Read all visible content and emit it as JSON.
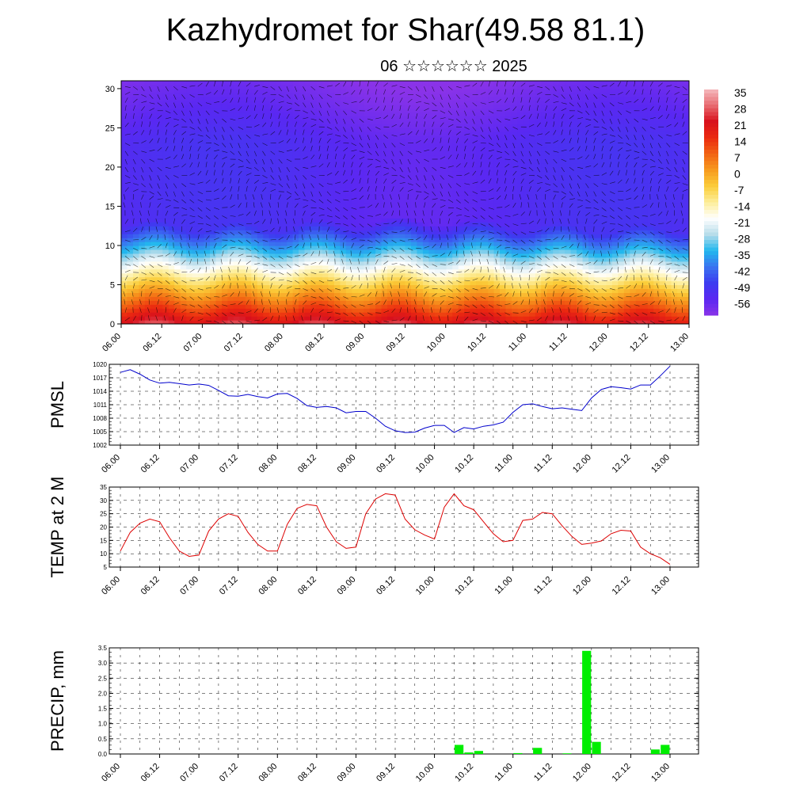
{
  "title": "Kazhydromet for Shar(49.58 81.1)",
  "subtitle": "06 ☆☆☆☆☆☆ 2025",
  "time_labels": [
    "06.00",
    "06.12",
    "07.00",
    "07.12",
    "08.00",
    "08.12",
    "09.00",
    "09.12",
    "10.00",
    "10.12",
    "11.00",
    "11.12",
    "12.00",
    "12.12",
    "13.00"
  ],
  "chart_data": [
    {
      "type": "heatmap",
      "panel": "cross-section",
      "x_categories": [
        "06.00",
        "06.12",
        "07.00",
        "07.12",
        "08.00",
        "08.12",
        "09.00",
        "09.12",
        "10.00",
        "10.12",
        "11.00",
        "11.12",
        "12.00",
        "12.12",
        "13.00"
      ],
      "ylim": [
        0,
        31
      ],
      "yticks": [
        0,
        5,
        10,
        15,
        20,
        25,
        30
      ],
      "colorbar": {
        "labels": [
          "35",
          "28",
          "21",
          "14",
          "7",
          "0",
          "-7",
          "-14",
          "-21",
          "-28",
          "-35",
          "-42",
          "-49",
          "-56"
        ],
        "range": [
          -63,
          42
        ],
        "colors": [
          "#8a33e8",
          "#5a28f2",
          "#3c3cf0",
          "#3a74f0",
          "#21b8ee",
          "#b7dcea",
          "#ffffff",
          "#fdee9a",
          "#fbcd3a",
          "#f79a1f",
          "#f26413",
          "#eb2a10",
          "#d8101c",
          "#e86a70",
          "#f5b9bd"
        ]
      },
      "wind_barbs": true
    },
    {
      "type": "line",
      "ylabel": "PMSL",
      "ylim": [
        1002,
        1020
      ],
      "yticks": [
        1002,
        1005,
        1008,
        1011,
        1014,
        1017,
        1020
      ],
      "x_step_hours": 3,
      "color": "#0000cc",
      "values": [
        1018.2,
        1018.8,
        1017.8,
        1016.5,
        1015.8,
        1016.0,
        1015.7,
        1015.4,
        1015.6,
        1015.3,
        1014.2,
        1013.0,
        1012.9,
        1013.3,
        1012.8,
        1012.5,
        1013.4,
        1013.5,
        1012.4,
        1010.8,
        1010.4,
        1010.6,
        1010.3,
        1009.2,
        1009.5,
        1009.5,
        1008.0,
        1006.2,
        1005.2,
        1004.8,
        1004.9,
        1005.8,
        1006.4,
        1006.4,
        1004.8,
        1005.9,
        1005.6,
        1006.2,
        1006.5,
        1007.1,
        1009.3,
        1011.0,
        1011.2,
        1010.6,
        1010.1,
        1010.3,
        1010.0,
        1009.7,
        1012.5,
        1014.4,
        1015.0,
        1014.8,
        1014.5,
        1015.4,
        1015.4,
        1017.4,
        1019.6
      ]
    },
    {
      "type": "line",
      "ylabel": "TEMP at 2 M",
      "ylim": [
        5,
        35
      ],
      "yticks": [
        5,
        10,
        15,
        20,
        25,
        30,
        35
      ],
      "x_step_hours": 3,
      "color": "#dd0000",
      "values": [
        11.0,
        18.0,
        21.5,
        23.0,
        22.0,
        16.0,
        11.0,
        9.0,
        9.5,
        18.5,
        23.0,
        25.0,
        24.0,
        18.0,
        13.5,
        11.0,
        11.0,
        21.0,
        27.0,
        28.5,
        28.0,
        20.0,
        14.5,
        12.0,
        12.5,
        25.0,
        30.5,
        32.5,
        32.0,
        23.0,
        19.0,
        17.0,
        15.5,
        27.5,
        32.5,
        28.0,
        26.5,
        22.0,
        17.5,
        14.5,
        15.0,
        22.5,
        23.0,
        25.5,
        25.0,
        20.5,
        16.5,
        13.5,
        14.0,
        14.8,
        17.5,
        18.8,
        18.5,
        12.5,
        10.0,
        8.5,
        6.0
      ]
    },
    {
      "type": "bar",
      "ylabel": "PRECIP, mm",
      "ylim": [
        0,
        3.5
      ],
      "yticks": [
        "0.0",
        "0.5",
        "1.0",
        "1.5",
        "2.0",
        "2.5",
        "3.0",
        "3.5"
      ],
      "x_step_hours": 3,
      "color": "#00ee00",
      "values": [
        0,
        0,
        0,
        0,
        0,
        0,
        0,
        0,
        0,
        0,
        0,
        0,
        0,
        0,
        0,
        0,
        0,
        0,
        0,
        0,
        0,
        0,
        0,
        0,
        0,
        0,
        0,
        0,
        0,
        0,
        0,
        0,
        0,
        0,
        0.3,
        0.05,
        0.1,
        0,
        0,
        0,
        0.03,
        0,
        0.2,
        0,
        0,
        0.02,
        0,
        3.4,
        0.4,
        0,
        0,
        0,
        0,
        0,
        0.15,
        0.3
      ]
    }
  ]
}
